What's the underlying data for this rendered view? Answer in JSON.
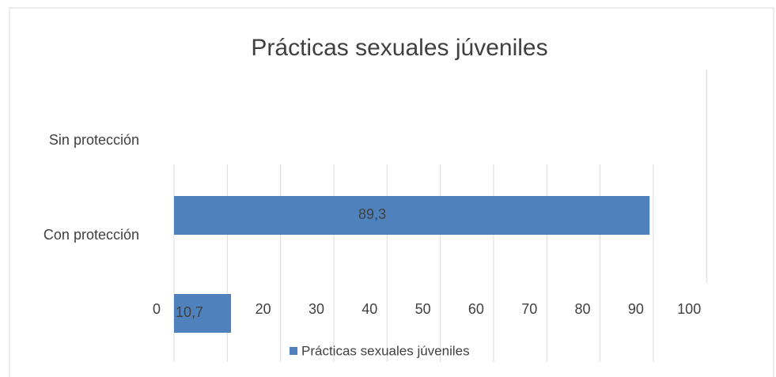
{
  "chart_data": {
    "type": "bar",
    "orientation": "horizontal",
    "title": "Prácticas sexuales júveniles",
    "categories": [
      "Con protección",
      "Sin protección"
    ],
    "series": [
      {
        "name": "Prácticas sexuales júveniles",
        "color": "#4f81bd",
        "values": [
          89.3,
          10.7
        ],
        "value_labels": [
          "89,3",
          "10,7"
        ]
      }
    ],
    "xlim": [
      0,
      100
    ],
    "xticks": [
      0,
      10,
      20,
      30,
      40,
      50,
      60,
      70,
      80,
      90,
      100
    ],
    "grid": true,
    "legend": "bottom"
  }
}
